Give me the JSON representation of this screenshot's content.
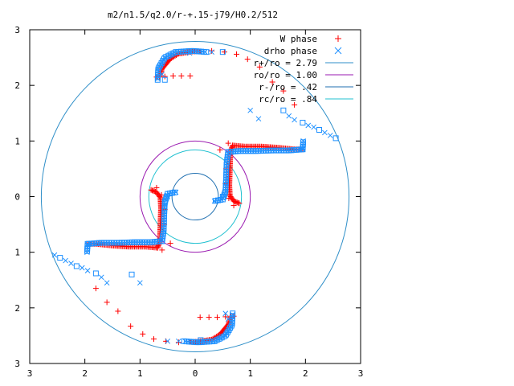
{
  "chart_data": {
    "type": "scatter",
    "title": "m2/n1.5/q2.0/r-+.15-j79/H0.2/512",
    "xlabel": "",
    "ylabel": "",
    "xlim": [
      -3,
      3
    ],
    "ylim": [
      -3,
      3
    ],
    "x_ticks": [
      -3,
      -2,
      -1,
      0,
      1,
      2,
      3
    ],
    "y_ticks": [
      -3,
      -2,
      -1,
      0,
      1,
      2,
      3
    ],
    "x_tick_labels": [
      "3",
      "2",
      "1",
      "0",
      "1",
      "2",
      "3"
    ],
    "y_tick_labels": [
      "3",
      "2",
      "1",
      "0",
      "1",
      "2",
      "3"
    ],
    "grid": false,
    "legend_position": "top-right",
    "series": [
      {
        "name": "W phase",
        "marker": "plus",
        "color": "#ff0000",
        "points": [
          [
            0.09,
            2.61
          ],
          [
            0.3,
            2.62
          ],
          [
            0.53,
            2.6
          ],
          [
            0.75,
            2.56
          ],
          [
            0.95,
            2.47
          ],
          [
            1.17,
            2.33
          ],
          [
            1.4,
            2.06
          ],
          [
            1.6,
            1.9
          ],
          [
            1.8,
            1.65
          ],
          [
            0.6,
            0.96
          ],
          [
            0.45,
            0.84
          ],
          [
            0.56,
            0.5
          ],
          [
            0.55,
            0.23
          ],
          [
            0.61,
            -0.03
          ],
          [
            0.7,
            -0.16
          ],
          [
            -0.09,
            2.17
          ],
          [
            -0.25,
            2.17
          ],
          [
            -0.4,
            2.17
          ],
          [
            -0.55,
            2.16
          ],
          [
            -0.7,
            2.15
          ],
          [
            -0.09,
            -2.61
          ],
          [
            -0.3,
            -2.62
          ],
          [
            -0.53,
            -2.6
          ],
          [
            -0.75,
            -2.56
          ],
          [
            -0.95,
            -2.47
          ],
          [
            -1.17,
            -2.33
          ],
          [
            -1.4,
            -2.06
          ],
          [
            -1.6,
            -1.9
          ],
          [
            -1.8,
            -1.65
          ],
          [
            -0.6,
            -0.96
          ],
          [
            -0.45,
            -0.84
          ],
          [
            -0.56,
            -0.5
          ],
          [
            -0.55,
            -0.23
          ],
          [
            -0.61,
            0.03
          ],
          [
            -0.7,
            0.16
          ],
          [
            0.09,
            -2.17
          ],
          [
            0.25,
            -2.17
          ],
          [
            0.4,
            -2.17
          ],
          [
            0.55,
            -2.16
          ],
          [
            0.7,
            -2.15
          ]
        ],
        "curves": [
          [
            [
              0.68,
              0.92
            ],
            [
              0.9,
              0.9
            ],
            [
              1.2,
              0.9
            ],
            [
              1.5,
              0.88
            ],
            [
              1.8,
              0.85
            ],
            [
              1.95,
              0.85
            ]
          ],
          [
            [
              0.68,
              0.92
            ],
            [
              0.64,
              0.8
            ],
            [
              0.63,
              0.5
            ],
            [
              0.62,
              0.2
            ],
            [
              0.63,
              0.02
            ],
            [
              0.7,
              -0.08
            ],
            [
              0.8,
              -0.12
            ]
          ],
          [
            [
              -0.65,
              2.15
            ],
            [
              -0.6,
              2.3
            ],
            [
              -0.45,
              2.48
            ],
            [
              -0.3,
              2.57
            ],
            [
              -0.05,
              2.61
            ],
            [
              0.1,
              2.61
            ]
          ],
          [
            [
              -0.68,
              -0.92
            ],
            [
              -0.9,
              -0.9
            ],
            [
              -1.2,
              -0.9
            ],
            [
              -1.5,
              -0.88
            ],
            [
              -1.8,
              -0.85
            ],
            [
              -1.95,
              -0.85
            ]
          ],
          [
            [
              -0.68,
              -0.92
            ],
            [
              -0.64,
              -0.8
            ],
            [
              -0.63,
              -0.5
            ],
            [
              -0.62,
              -0.2
            ],
            [
              -0.63,
              -0.02
            ],
            [
              -0.7,
              0.08
            ],
            [
              -0.8,
              0.12
            ]
          ],
          [
            [
              0.65,
              -2.15
            ],
            [
              0.6,
              -2.3
            ],
            [
              0.45,
              -2.48
            ],
            [
              0.3,
              -2.57
            ],
            [
              0.05,
              -2.61
            ],
            [
              -0.1,
              -2.61
            ]
          ]
        ]
      },
      {
        "name": "drho phase",
        "marker": "cross-box",
        "color": "#1e90ff",
        "points": [
          [
            1.6,
            1.55
          ],
          [
            1.7,
            1.45
          ],
          [
            1.8,
            1.38
          ],
          [
            1.95,
            1.33
          ],
          [
            2.05,
            1.28
          ],
          [
            2.15,
            1.25
          ],
          [
            2.25,
            1.2
          ],
          [
            2.35,
            1.15
          ],
          [
            2.45,
            1.1
          ],
          [
            2.55,
            1.05
          ],
          [
            1.0,
            1.55
          ],
          [
            1.15,
            1.4
          ],
          [
            0.5,
            2.6
          ],
          [
            0.3,
            2.6
          ],
          [
            -0.1,
            2.58
          ],
          [
            -0.55,
            2.1
          ],
          [
            -0.6,
            2.2
          ],
          [
            0.55,
            0.1
          ],
          [
            0.5,
            0.0
          ],
          [
            -1.6,
            -1.55
          ],
          [
            -1.7,
            -1.45
          ],
          [
            -1.8,
            -1.38
          ],
          [
            -1.95,
            -1.33
          ],
          [
            -2.05,
            -1.28
          ],
          [
            -2.15,
            -1.25
          ],
          [
            -2.25,
            -1.2
          ],
          [
            -2.35,
            -1.15
          ],
          [
            -2.45,
            -1.1
          ],
          [
            -2.55,
            -1.05
          ],
          [
            -1.0,
            -1.55
          ],
          [
            -1.15,
            -1.4
          ],
          [
            -0.5,
            -2.6
          ],
          [
            -0.3,
            -2.6
          ],
          [
            0.1,
            -2.58
          ],
          [
            0.55,
            -2.1
          ],
          [
            0.6,
            -2.2
          ],
          [
            -0.55,
            -0.1
          ],
          [
            -0.5,
            0.0
          ]
        ],
        "curves": [
          [
            [
              0.6,
              0.8
            ],
            [
              0.8,
              0.82
            ],
            [
              1.1,
              0.82
            ],
            [
              1.4,
              0.83
            ],
            [
              1.7,
              0.83
            ],
            [
              1.95,
              0.85
            ]
          ],
          [
            [
              0.6,
              0.8
            ],
            [
              0.57,
              0.6
            ],
            [
              0.56,
              0.3
            ],
            [
              0.55,
              0.1
            ],
            [
              0.5,
              -0.05
            ],
            [
              0.35,
              -0.08
            ]
          ],
          [
            [
              -0.68,
              2.1
            ],
            [
              -0.67,
              2.3
            ],
            [
              -0.55,
              2.5
            ],
            [
              -0.35,
              2.6
            ],
            [
              -0.05,
              2.62
            ],
            [
              0.2,
              2.6
            ]
          ],
          [
            [
              1.95,
              0.85
            ],
            [
              1.96,
              1.0
            ]
          ],
          [
            [
              -0.6,
              -0.8
            ],
            [
              -0.8,
              -0.82
            ],
            [
              -1.1,
              -0.82
            ],
            [
              -1.4,
              -0.83
            ],
            [
              -1.7,
              -0.83
            ],
            [
              -1.95,
              -0.85
            ]
          ],
          [
            [
              -0.6,
              -0.8
            ],
            [
              -0.57,
              -0.6
            ],
            [
              -0.56,
              -0.3
            ],
            [
              -0.55,
              -0.1
            ],
            [
              -0.5,
              0.05
            ],
            [
              -0.35,
              0.08
            ]
          ],
          [
            [
              0.68,
              -2.1
            ],
            [
              0.67,
              -2.3
            ],
            [
              0.55,
              -2.5
            ],
            [
              0.35,
              -2.6
            ],
            [
              0.05,
              -2.62
            ],
            [
              -0.2,
              -2.6
            ]
          ],
          [
            [
              -1.95,
              -0.85
            ],
            [
              -1.96,
              -1.0
            ]
          ]
        ]
      },
      {
        "name": "r+/ro = 2.79",
        "type": "circle",
        "radius": 2.79,
        "color": "#2f8fc8"
      },
      {
        "name": "ro/ro = 1.00",
        "type": "circle",
        "radius": 1.0,
        "color": "#9a1ab0"
      },
      {
        "name": "r-/ro = .42",
        "type": "circle",
        "radius": 0.42,
        "color": "#1f6fb0"
      },
      {
        "name": "rc/ro = .84",
        "type": "circle",
        "radius": 0.84,
        "color": "#20c0d0"
      }
    ]
  }
}
